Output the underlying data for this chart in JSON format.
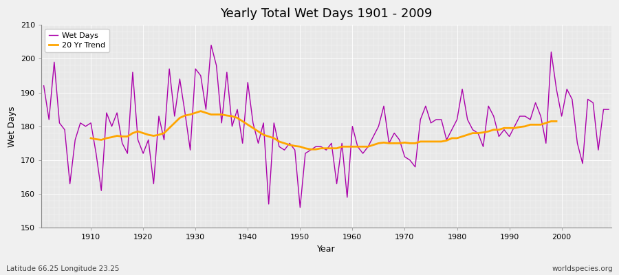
{
  "title": "Yearly Total Wet Days 1901 - 2009",
  "xlabel": "Year",
  "ylabel": "Wet Days",
  "subtitle": "Latitude 66.25 Longitude 23.25",
  "watermark": "worldspecies.org",
  "wet_days_color": "#aa00aa",
  "trend_color": "#ffa500",
  "fig_bg_color": "#f0f0f0",
  "plot_bg_color": "#e8e8e8",
  "ylim": [
    150,
    210
  ],
  "yticks": [
    150,
    160,
    170,
    180,
    190,
    200,
    210
  ],
  "years": [
    1901,
    1902,
    1903,
    1904,
    1905,
    1906,
    1907,
    1908,
    1909,
    1910,
    1911,
    1912,
    1913,
    1914,
    1915,
    1916,
    1917,
    1918,
    1919,
    1920,
    1921,
    1922,
    1923,
    1924,
    1925,
    1926,
    1927,
    1928,
    1929,
    1930,
    1931,
    1932,
    1933,
    1934,
    1935,
    1936,
    1937,
    1938,
    1939,
    1940,
    1941,
    1942,
    1943,
    1944,
    1945,
    1946,
    1947,
    1948,
    1949,
    1950,
    1951,
    1952,
    1953,
    1954,
    1955,
    1956,
    1957,
    1958,
    1959,
    1960,
    1961,
    1962,
    1963,
    1964,
    1965,
    1966,
    1967,
    1968,
    1969,
    1970,
    1971,
    1972,
    1973,
    1974,
    1975,
    1976,
    1977,
    1978,
    1979,
    1980,
    1981,
    1982,
    1983,
    1984,
    1985,
    1986,
    1987,
    1988,
    1989,
    1990,
    1991,
    1992,
    1993,
    1994,
    1995,
    1996,
    1997,
    1998,
    1999,
    2000,
    2001,
    2002,
    2003,
    2004,
    2005,
    2006,
    2007,
    2008,
    2009
  ],
  "wet_days": [
    192,
    182,
    199,
    181,
    179,
    163,
    176,
    181,
    180,
    181,
    172,
    161,
    184,
    180,
    184,
    175,
    172,
    196,
    176,
    172,
    176,
    163,
    183,
    176,
    197,
    183,
    194,
    184,
    173,
    197,
    195,
    185,
    204,
    198,
    181,
    196,
    180,
    185,
    175,
    193,
    181,
    175,
    181,
    157,
    181,
    174,
    173,
    175,
    173,
    156,
    172,
    173,
    174,
    174,
    173,
    175,
    163,
    175,
    159,
    180,
    174,
    172,
    174,
    177,
    180,
    186,
    175,
    178,
    176,
    171,
    170,
    168,
    182,
    186,
    181,
    182,
    182,
    176,
    179,
    182,
    191,
    182,
    179,
    178,
    174,
    186,
    183,
    177,
    179,
    177,
    180,
    183,
    183,
    182,
    187,
    183,
    175,
    202,
    191,
    183,
    191,
    188,
    175,
    169,
    188,
    187,
    173,
    185,
    185
  ],
  "trend": [
    null,
    null,
    null,
    null,
    null,
    null,
    null,
    null,
    null,
    176.5,
    176.2,
    176.0,
    176.5,
    176.8,
    177.2,
    177.0,
    177.0,
    178.0,
    178.5,
    178.0,
    177.5,
    177.2,
    177.5,
    178.0,
    179.5,
    181.0,
    182.5,
    183.2,
    183.5,
    184.0,
    184.5,
    184.0,
    183.5,
    183.5,
    183.5,
    183.2,
    183.0,
    182.5,
    181.5,
    180.5,
    179.5,
    178.5,
    177.5,
    177.0,
    176.5,
    175.5,
    175.0,
    174.5,
    174.2,
    174.0,
    173.5,
    173.2,
    173.2,
    173.5,
    173.5,
    173.5,
    173.5,
    174.0,
    174.0,
    174.0,
    174.0,
    174.0,
    174.0,
    174.5,
    175.0,
    175.2,
    175.0,
    175.0,
    175.0,
    175.2,
    175.0,
    175.0,
    175.5,
    175.5,
    175.5,
    175.5,
    175.5,
    175.8,
    176.5,
    176.5,
    177.0,
    177.5,
    178.0,
    178.0,
    178.2,
    178.5,
    179.0,
    179.0,
    179.5,
    179.5,
    179.5,
    179.8,
    180.0,
    180.5,
    180.5,
    180.5,
    181.0,
    181.5,
    181.5,
    null,
    null,
    null,
    null,
    null,
    null,
    null,
    null,
    null,
    null
  ]
}
